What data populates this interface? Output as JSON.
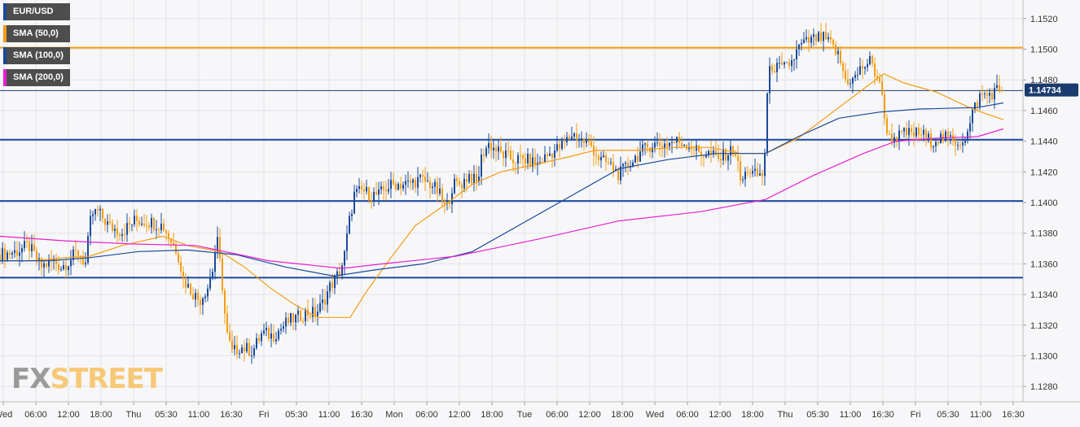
{
  "chart_data": {
    "type": "candlestick",
    "symbol": "EUR/USD",
    "ylim": [
      1.127,
      1.153
    ],
    "yticks": [
      "1.1280",
      "1.1300",
      "1.1320",
      "1.1340",
      "1.1360",
      "1.1380",
      "1.1400",
      "1.1420",
      "1.1440",
      "1.1460",
      "1.1480",
      "1.1500",
      "1.1520"
    ],
    "xticks": [
      "Wed",
      "06:00",
      "12:00",
      "18:00",
      "Thu",
      "05:30",
      "11:00",
      "16:30",
      "Fri",
      "05:30",
      "11:00",
      "16:30",
      "Mon",
      "06:00",
      "12:00",
      "18:00",
      "Tue",
      "06:00",
      "12:00",
      "18:00",
      "Wed",
      "06:00",
      "12:00",
      "18:00",
      "Thu",
      "05:30",
      "11:00",
      "16:30",
      "Fri",
      "05:30",
      "11:00",
      "16:30"
    ],
    "current_price": "1.14734",
    "horizontal_levels": [
      {
        "value": 1.1501,
        "color": "#f39c12"
      },
      {
        "value": 1.1473,
        "color": "#1a3b6e",
        "thin": true
      },
      {
        "value": 1.1441,
        "color": "#1a4a9a"
      },
      {
        "value": 1.1401,
        "color": "#1a4a9a"
      },
      {
        "value": 1.1351,
        "color": "#1a4a9a"
      }
    ],
    "price_anchors": [
      [
        0,
        1.1366
      ],
      [
        20,
        1.1368
      ],
      [
        35,
        1.1372
      ],
      [
        50,
        1.1358
      ],
      [
        65,
        1.1362
      ],
      [
        75,
        1.1358
      ],
      [
        85,
        1.1362
      ],
      [
        95,
        1.1368
      ],
      [
        105,
        1.136
      ],
      [
        112,
        1.1392
      ],
      [
        120,
        1.1394
      ],
      [
        135,
        1.1384
      ],
      [
        150,
        1.1381
      ],
      [
        165,
        1.1388
      ],
      [
        180,
        1.1388
      ],
      [
        200,
        1.1385
      ],
      [
        210,
        1.1375
      ],
      [
        218,
        1.1368
      ],
      [
        225,
        1.135
      ],
      [
        235,
        1.1342
      ],
      [
        245,
        1.1336
      ],
      [
        255,
        1.1345
      ],
      [
        262,
        1.1358
      ],
      [
        266,
        1.1378
      ],
      [
        272,
        1.1352
      ],
      [
        278,
        1.1315
      ],
      [
        285,
        1.1302
      ],
      [
        295,
        1.1306
      ],
      [
        310,
        1.1303
      ],
      [
        322,
        1.1315
      ],
      [
        335,
        1.1313
      ],
      [
        345,
        1.1318
      ],
      [
        355,
        1.1323
      ],
      [
        365,
        1.1325
      ],
      [
        375,
        1.1328
      ],
      [
        388,
        1.1328
      ],
      [
        395,
        1.1333
      ],
      [
        405,
        1.1345
      ],
      [
        415,
        1.1353
      ],
      [
        422,
        1.1362
      ],
      [
        428,
        1.1385
      ],
      [
        435,
        1.1405
      ],
      [
        445,
        1.1408
      ],
      [
        455,
        1.1405
      ],
      [
        465,
        1.1405
      ],
      [
        475,
        1.141
      ],
      [
        485,
        1.1412
      ],
      [
        500,
        1.1412
      ],
      [
        515,
        1.1415
      ],
      [
        530,
        1.1412
      ],
      [
        540,
        1.1405
      ],
      [
        548,
        1.1395
      ],
      [
        556,
        1.1412
      ],
      [
        566,
        1.1412
      ],
      [
        576,
        1.1418
      ],
      [
        586,
        1.1412
      ],
      [
        592,
        1.1432
      ],
      [
        600,
        1.1438
      ],
      [
        615,
        1.1432
      ],
      [
        630,
        1.1428
      ],
      [
        645,
        1.1428
      ],
      [
        660,
        1.1425
      ],
      [
        675,
        1.1432
      ],
      [
        690,
        1.1437
      ],
      [
        703,
        1.1445
      ],
      [
        716,
        1.144
      ],
      [
        726,
        1.1437
      ],
      [
        736,
        1.1428
      ],
      [
        748,
        1.1425
      ],
      [
        760,
        1.1418
      ],
      [
        772,
        1.1425
      ],
      [
        785,
        1.1432
      ],
      [
        800,
        1.1438
      ],
      [
        815,
        1.1438
      ],
      [
        830,
        1.144
      ],
      [
        845,
        1.1438
      ],
      [
        860,
        1.1432
      ],
      [
        872,
        1.1432
      ],
      [
        882,
        1.1428
      ],
      [
        892,
        1.1432
      ],
      [
        902,
        1.1435
      ],
      [
        910,
        1.1412
      ],
      [
        918,
        1.1422
      ],
      [
        925,
        1.1418
      ],
      [
        932,
        1.1418
      ],
      [
        938,
        1.1418
      ],
      [
        941,
        1.1465
      ],
      [
        946,
        1.149
      ],
      [
        952,
        1.1488
      ],
      [
        962,
        1.1487
      ],
      [
        972,
        1.1492
      ],
      [
        982,
        1.1502
      ],
      [
        992,
        1.1505
      ],
      [
        1002,
        1.1507
      ],
      [
        1012,
        1.1507
      ],
      [
        1022,
        1.1502
      ],
      [
        1030,
        1.1495
      ],
      [
        1038,
        1.148
      ],
      [
        1048,
        1.148
      ],
      [
        1058,
        1.1488
      ],
      [
        1068,
        1.1492
      ],
      [
        1075,
        1.1484
      ],
      [
        1080,
        1.148
      ],
      [
        1086,
        1.1455
      ],
      [
        1092,
        1.1442
      ],
      [
        1102,
        1.1443
      ],
      [
        1112,
        1.1445
      ],
      [
        1122,
        1.1445
      ],
      [
        1132,
        1.1445
      ],
      [
        1142,
        1.144
      ],
      [
        1152,
        1.1442
      ],
      [
        1162,
        1.1442
      ],
      [
        1172,
        1.144
      ],
      [
        1180,
        1.144
      ],
      [
        1188,
        1.1445
      ],
      [
        1196,
        1.1462
      ],
      [
        1204,
        1.147
      ],
      [
        1212,
        1.147
      ],
      [
        1220,
        1.1472
      ],
      [
        1226,
        1.1474
      ]
    ],
    "series": [
      {
        "name": "SMA (50,0)",
        "color": "#f39c12",
        "values": [
          [
            0,
            1.1362
          ],
          [
            40,
            1.1362
          ],
          [
            80,
            1.1364
          ],
          [
            110,
            1.1365
          ],
          [
            150,
            1.1372
          ],
          [
            200,
            1.1378
          ],
          [
            230,
            1.1372
          ],
          [
            270,
            1.1368
          ],
          [
            300,
            1.1358
          ],
          [
            330,
            1.1345
          ],
          [
            360,
            1.1334
          ],
          [
            390,
            1.1325
          ],
          [
            430,
            1.1325
          ],
          [
            450,
            1.1342
          ],
          [
            480,
            1.1364
          ],
          [
            510,
            1.1385
          ],
          [
            545,
            1.1398
          ],
          [
            580,
            1.1412
          ],
          [
            615,
            1.142
          ],
          [
            650,
            1.1424
          ],
          [
            700,
            1.143
          ],
          [
            730,
            1.1434
          ],
          [
            780,
            1.1434
          ],
          [
            830,
            1.1436
          ],
          [
            870,
            1.1436
          ],
          [
            910,
            1.1432
          ],
          [
            940,
            1.1432
          ],
          [
            980,
            1.1442
          ],
          [
            1020,
            1.1458
          ],
          [
            1060,
            1.1474
          ],
          [
            1085,
            1.1484
          ],
          [
            1110,
            1.1478
          ],
          [
            1150,
            1.1472
          ],
          [
            1190,
            1.1462
          ],
          [
            1210,
            1.1458
          ],
          [
            1232,
            1.1454
          ]
        ]
      },
      {
        "name": "SMA (100,0)",
        "color": "#1a4a9a",
        "values": [
          [
            0,
            1.1362
          ],
          [
            60,
            1.1362
          ],
          [
            110,
            1.1364
          ],
          [
            170,
            1.1368
          ],
          [
            230,
            1.1369
          ],
          [
            290,
            1.1366
          ],
          [
            350,
            1.1358
          ],
          [
            410,
            1.1352
          ],
          [
            460,
            1.1356
          ],
          [
            520,
            1.136
          ],
          [
            580,
            1.1368
          ],
          [
            640,
            1.1386
          ],
          [
            700,
            1.1404
          ],
          [
            760,
            1.1422
          ],
          [
            820,
            1.1428
          ],
          [
            880,
            1.1432
          ],
          [
            940,
            1.1432
          ],
          [
            980,
            1.1443
          ],
          [
            1030,
            1.1455
          ],
          [
            1080,
            1.1459
          ],
          [
            1130,
            1.1461
          ],
          [
            1200,
            1.1462
          ],
          [
            1232,
            1.1465
          ]
        ]
      },
      {
        "name": "SMA (200,0)",
        "color": "#e620d0",
        "values": [
          [
            0,
            1.1378
          ],
          [
            80,
            1.1375
          ],
          [
            160,
            1.1373
          ],
          [
            240,
            1.1372
          ],
          [
            330,
            1.1362
          ],
          [
            420,
            1.1357
          ],
          [
            470,
            1.136
          ],
          [
            560,
            1.1365
          ],
          [
            660,
            1.1376
          ],
          [
            760,
            1.1388
          ],
          [
            860,
            1.1394
          ],
          [
            940,
            1.1402
          ],
          [
            1000,
            1.1418
          ],
          [
            1060,
            1.1432
          ],
          [
            1100,
            1.144
          ],
          [
            1150,
            1.1442
          ],
          [
            1200,
            1.1443
          ],
          [
            1232,
            1.1448
          ]
        ]
      }
    ],
    "colors": {
      "bull": "#1a4a9a",
      "bear": "#f39c12",
      "background": "#f7f7f9",
      "grid": "#e3e3e8"
    },
    "grid": true,
    "legend_position": "top-left"
  },
  "watermark": {
    "fx": "FX",
    "street": "STREET"
  }
}
